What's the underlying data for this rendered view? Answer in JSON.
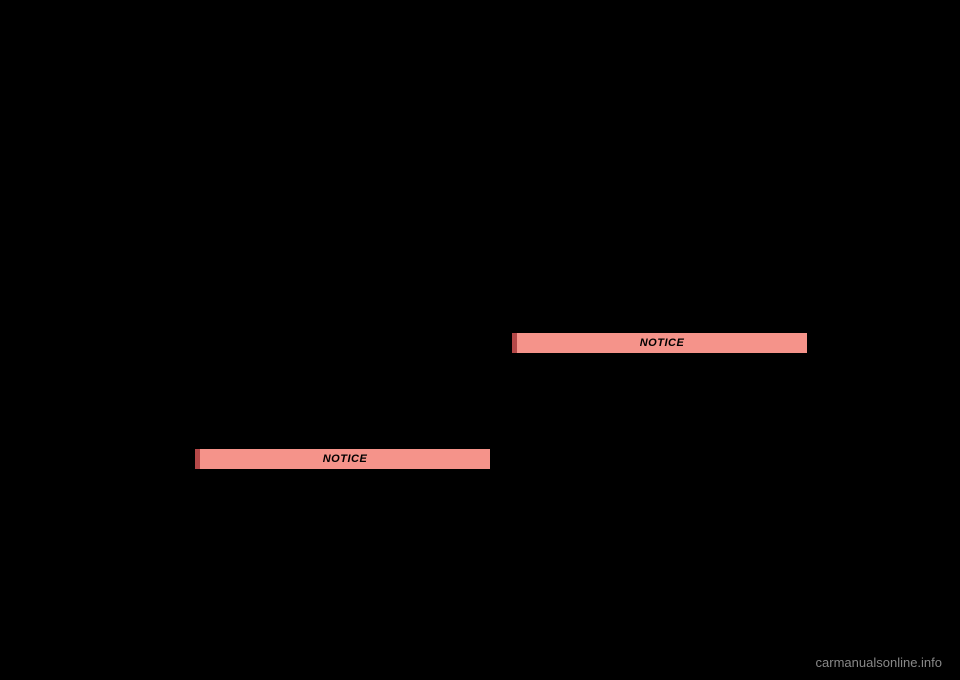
{
  "notices": {
    "left": {
      "label": "NOTICE"
    },
    "right": {
      "label": "NOTICE"
    }
  },
  "watermark": "carmanualsonline.info",
  "colors": {
    "background": "#000000",
    "notice_bg": "#f5938a",
    "notice_border": "#b54848",
    "notice_text": "#000000",
    "watermark_text": "#888888"
  }
}
